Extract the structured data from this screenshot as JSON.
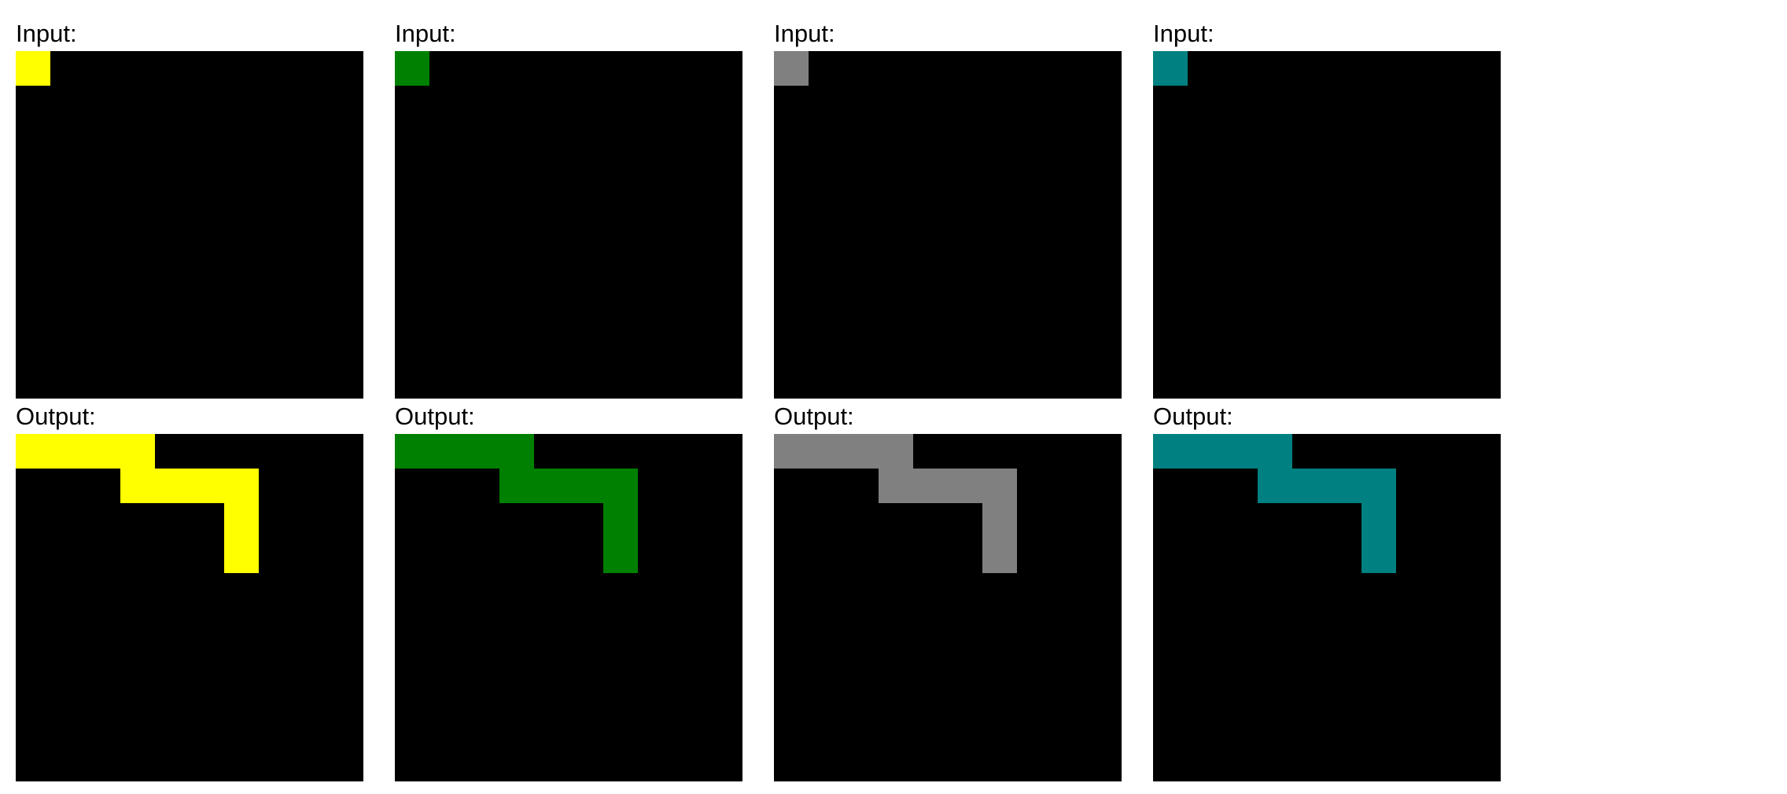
{
  "examples": [
    {
      "input_label": "Input:",
      "output_label": "Output:",
      "color": "#ffff00",
      "color_name": "yellow",
      "input_grid": [
        [
          1,
          0,
          0,
          0,
          0,
          0,
          0,
          0,
          0,
          0
        ],
        [
          0,
          0,
          0,
          0,
          0,
          0,
          0,
          0,
          0,
          0
        ],
        [
          0,
          0,
          0,
          0,
          0,
          0,
          0,
          0,
          0,
          0
        ],
        [
          0,
          0,
          0,
          0,
          0,
          0,
          0,
          0,
          0,
          0
        ],
        [
          0,
          0,
          0,
          0,
          0,
          0,
          0,
          0,
          0,
          0
        ],
        [
          0,
          0,
          0,
          0,
          0,
          0,
          0,
          0,
          0,
          0
        ],
        [
          0,
          0,
          0,
          0,
          0,
          0,
          0,
          0,
          0,
          0
        ],
        [
          0,
          0,
          0,
          0,
          0,
          0,
          0,
          0,
          0,
          0
        ],
        [
          0,
          0,
          0,
          0,
          0,
          0,
          0,
          0,
          0,
          0
        ],
        [
          0,
          0,
          0,
          0,
          0,
          0,
          0,
          0,
          0,
          0
        ]
      ],
      "output_grid": [
        [
          1,
          1,
          1,
          1,
          0,
          0,
          0,
          0,
          0,
          0
        ],
        [
          0,
          0,
          0,
          1,
          1,
          1,
          1,
          0,
          0,
          0
        ],
        [
          0,
          0,
          0,
          0,
          0,
          0,
          1,
          0,
          0,
          0
        ],
        [
          0,
          0,
          0,
          0,
          0,
          0,
          1,
          0,
          0,
          0
        ],
        [
          0,
          0,
          0,
          0,
          0,
          0,
          0,
          0,
          0,
          0
        ],
        [
          0,
          0,
          0,
          0,
          0,
          0,
          0,
          0,
          0,
          0
        ],
        [
          0,
          0,
          0,
          0,
          0,
          0,
          0,
          0,
          0,
          0
        ],
        [
          0,
          0,
          0,
          0,
          0,
          0,
          0,
          0,
          0,
          0
        ],
        [
          0,
          0,
          0,
          0,
          0,
          0,
          0,
          0,
          0,
          0
        ],
        [
          0,
          0,
          0,
          0,
          0,
          0,
          0,
          0,
          0,
          0
        ]
      ]
    },
    {
      "input_label": "Input:",
      "output_label": "Output:",
      "color": "#008000",
      "color_name": "green",
      "input_grid": [
        [
          1,
          0,
          0,
          0,
          0,
          0,
          0,
          0,
          0,
          0
        ],
        [
          0,
          0,
          0,
          0,
          0,
          0,
          0,
          0,
          0,
          0
        ],
        [
          0,
          0,
          0,
          0,
          0,
          0,
          0,
          0,
          0,
          0
        ],
        [
          0,
          0,
          0,
          0,
          0,
          0,
          0,
          0,
          0,
          0
        ],
        [
          0,
          0,
          0,
          0,
          0,
          0,
          0,
          0,
          0,
          0
        ],
        [
          0,
          0,
          0,
          0,
          0,
          0,
          0,
          0,
          0,
          0
        ],
        [
          0,
          0,
          0,
          0,
          0,
          0,
          0,
          0,
          0,
          0
        ],
        [
          0,
          0,
          0,
          0,
          0,
          0,
          0,
          0,
          0,
          0
        ],
        [
          0,
          0,
          0,
          0,
          0,
          0,
          0,
          0,
          0,
          0
        ],
        [
          0,
          0,
          0,
          0,
          0,
          0,
          0,
          0,
          0,
          0
        ]
      ],
      "output_grid": [
        [
          1,
          1,
          1,
          1,
          0,
          0,
          0,
          0,
          0,
          0
        ],
        [
          0,
          0,
          0,
          1,
          1,
          1,
          1,
          0,
          0,
          0
        ],
        [
          0,
          0,
          0,
          0,
          0,
          0,
          1,
          0,
          0,
          0
        ],
        [
          0,
          0,
          0,
          0,
          0,
          0,
          1,
          0,
          0,
          0
        ],
        [
          0,
          0,
          0,
          0,
          0,
          0,
          0,
          0,
          0,
          0
        ],
        [
          0,
          0,
          0,
          0,
          0,
          0,
          0,
          0,
          0,
          0
        ],
        [
          0,
          0,
          0,
          0,
          0,
          0,
          0,
          0,
          0,
          0
        ],
        [
          0,
          0,
          0,
          0,
          0,
          0,
          0,
          0,
          0,
          0
        ],
        [
          0,
          0,
          0,
          0,
          0,
          0,
          0,
          0,
          0,
          0
        ],
        [
          0,
          0,
          0,
          0,
          0,
          0,
          0,
          0,
          0,
          0
        ]
      ]
    },
    {
      "input_label": "Input:",
      "output_label": "Output:",
      "color": "#808080",
      "color_name": "gray",
      "input_grid": [
        [
          1,
          0,
          0,
          0,
          0,
          0,
          0,
          0,
          0,
          0
        ],
        [
          0,
          0,
          0,
          0,
          0,
          0,
          0,
          0,
          0,
          0
        ],
        [
          0,
          0,
          0,
          0,
          0,
          0,
          0,
          0,
          0,
          0
        ],
        [
          0,
          0,
          0,
          0,
          0,
          0,
          0,
          0,
          0,
          0
        ],
        [
          0,
          0,
          0,
          0,
          0,
          0,
          0,
          0,
          0,
          0
        ],
        [
          0,
          0,
          0,
          0,
          0,
          0,
          0,
          0,
          0,
          0
        ],
        [
          0,
          0,
          0,
          0,
          0,
          0,
          0,
          0,
          0,
          0
        ],
        [
          0,
          0,
          0,
          0,
          0,
          0,
          0,
          0,
          0,
          0
        ],
        [
          0,
          0,
          0,
          0,
          0,
          0,
          0,
          0,
          0,
          0
        ],
        [
          0,
          0,
          0,
          0,
          0,
          0,
          0,
          0,
          0,
          0
        ]
      ],
      "output_grid": [
        [
          1,
          1,
          1,
          1,
          0,
          0,
          0,
          0,
          0,
          0
        ],
        [
          0,
          0,
          0,
          1,
          1,
          1,
          1,
          0,
          0,
          0
        ],
        [
          0,
          0,
          0,
          0,
          0,
          0,
          1,
          0,
          0,
          0
        ],
        [
          0,
          0,
          0,
          0,
          0,
          0,
          1,
          0,
          0,
          0
        ],
        [
          0,
          0,
          0,
          0,
          0,
          0,
          0,
          0,
          0,
          0
        ],
        [
          0,
          0,
          0,
          0,
          0,
          0,
          0,
          0,
          0,
          0
        ],
        [
          0,
          0,
          0,
          0,
          0,
          0,
          0,
          0,
          0,
          0
        ],
        [
          0,
          0,
          0,
          0,
          0,
          0,
          0,
          0,
          0,
          0
        ],
        [
          0,
          0,
          0,
          0,
          0,
          0,
          0,
          0,
          0,
          0
        ],
        [
          0,
          0,
          0,
          0,
          0,
          0,
          0,
          0,
          0,
          0
        ]
      ]
    },
    {
      "input_label": "Input:",
      "output_label": "Output:",
      "color": "#008080",
      "color_name": "teal",
      "input_grid": [
        [
          1,
          0,
          0,
          0,
          0,
          0,
          0,
          0,
          0,
          0
        ],
        [
          0,
          0,
          0,
          0,
          0,
          0,
          0,
          0,
          0,
          0
        ],
        [
          0,
          0,
          0,
          0,
          0,
          0,
          0,
          0,
          0,
          0
        ],
        [
          0,
          0,
          0,
          0,
          0,
          0,
          0,
          0,
          0,
          0
        ],
        [
          0,
          0,
          0,
          0,
          0,
          0,
          0,
          0,
          0,
          0
        ],
        [
          0,
          0,
          0,
          0,
          0,
          0,
          0,
          0,
          0,
          0
        ],
        [
          0,
          0,
          0,
          0,
          0,
          0,
          0,
          0,
          0,
          0
        ],
        [
          0,
          0,
          0,
          0,
          0,
          0,
          0,
          0,
          0,
          0
        ],
        [
          0,
          0,
          0,
          0,
          0,
          0,
          0,
          0,
          0,
          0
        ],
        [
          0,
          0,
          0,
          0,
          0,
          0,
          0,
          0,
          0,
          0
        ]
      ],
      "output_grid": [
        [
          1,
          1,
          1,
          1,
          0,
          0,
          0,
          0,
          0,
          0
        ],
        [
          0,
          0,
          0,
          1,
          1,
          1,
          1,
          0,
          0,
          0
        ],
        [
          0,
          0,
          0,
          0,
          0,
          0,
          1,
          0,
          0,
          0
        ],
        [
          0,
          0,
          0,
          0,
          0,
          0,
          1,
          0,
          0,
          0
        ],
        [
          0,
          0,
          0,
          0,
          0,
          0,
          0,
          0,
          0,
          0
        ],
        [
          0,
          0,
          0,
          0,
          0,
          0,
          0,
          0,
          0,
          0
        ],
        [
          0,
          0,
          0,
          0,
          0,
          0,
          0,
          0,
          0,
          0
        ],
        [
          0,
          0,
          0,
          0,
          0,
          0,
          0,
          0,
          0,
          0
        ],
        [
          0,
          0,
          0,
          0,
          0,
          0,
          0,
          0,
          0,
          0
        ],
        [
          0,
          0,
          0,
          0,
          0,
          0,
          0,
          0,
          0,
          0
        ]
      ]
    }
  ],
  "background_color": "#000000"
}
